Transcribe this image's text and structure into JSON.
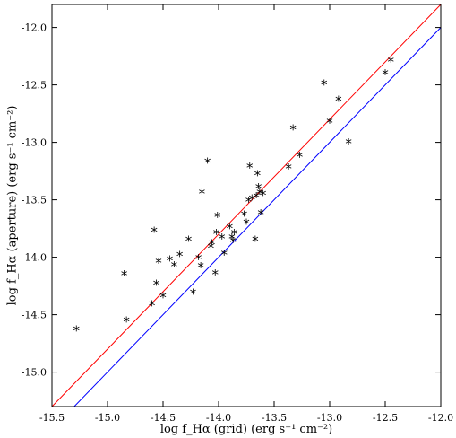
{
  "chart_data": {
    "type": "scatter",
    "xlabel": "log f_Hα (grid) (erg s⁻¹ cm⁻²)",
    "ylabel": "log f_Hα (aperture) (erg s⁻¹ cm⁻²)",
    "xlim": [
      -15.5,
      -12.0
    ],
    "ylim": [
      -15.3,
      -11.8
    ],
    "x_ticks": [
      -15.5,
      -15.0,
      -14.5,
      -14.0,
      -13.5,
      -13.0,
      -12.5,
      -12.0
    ],
    "x_tick_labels": [
      "-15.5",
      "-15.0",
      "-14.5",
      "-14.0",
      "-13.5",
      "-13.0",
      "-12.5",
      "-12.0"
    ],
    "y_ticks": [
      -15.0,
      -14.5,
      -14.0,
      -13.5,
      -13.0,
      -12.5,
      -12.0
    ],
    "y_tick_labels": [
      "-15.0",
      "-14.5",
      "-14.0",
      "-13.5",
      "-13.0",
      "-12.5",
      "-12.0"
    ],
    "grid": false,
    "marker": "*",
    "lines": [
      {
        "color": "#ff0000",
        "points": [
          [
            -15.5,
            -15.3
          ],
          [
            -12.0,
            -11.8
          ]
        ]
      },
      {
        "color": "#0000ff",
        "points": [
          [
            -15.3,
            -15.3
          ],
          [
            -12.0,
            -12.0
          ]
        ]
      }
    ],
    "points": [
      [
        -15.28,
        -14.64
      ],
      [
        -14.85,
        -14.16
      ],
      [
        -14.83,
        -14.56
      ],
      [
        -14.6,
        -14.42
      ],
      [
        -14.58,
        -13.78
      ],
      [
        -14.56,
        -14.24
      ],
      [
        -14.54,
        -14.05
      ],
      [
        -14.5,
        -14.35
      ],
      [
        -14.44,
        -14.03
      ],
      [
        -14.4,
        -14.08
      ],
      [
        -14.35,
        -13.99
      ],
      [
        -14.27,
        -13.86
      ],
      [
        -14.23,
        -14.32
      ],
      [
        -14.18,
        -14.02
      ],
      [
        -14.16,
        -14.09
      ],
      [
        -14.15,
        -13.45
      ],
      [
        -14.1,
        -13.18
      ],
      [
        -14.07,
        -13.92
      ],
      [
        -14.06,
        -13.89
      ],
      [
        -14.03,
        -14.15
      ],
      [
        -14.02,
        -13.8
      ],
      [
        -14.01,
        -13.65
      ],
      [
        -13.97,
        -13.84
      ],
      [
        -13.95,
        -13.98
      ],
      [
        -13.9,
        -13.75
      ],
      [
        -13.88,
        -13.84
      ],
      [
        -13.87,
        -13.87
      ],
      [
        -13.86,
        -13.8
      ],
      [
        -13.77,
        -13.64
      ],
      [
        -13.75,
        -13.71
      ],
      [
        -13.73,
        -13.52
      ],
      [
        -13.72,
        -13.22
      ],
      [
        -13.7,
        -13.5
      ],
      [
        -13.67,
        -13.86
      ],
      [
        -13.66,
        -13.48
      ],
      [
        -13.65,
        -13.29
      ],
      [
        -13.64,
        -13.4
      ],
      [
        -13.63,
        -13.45
      ],
      [
        -13.62,
        -13.63
      ],
      [
        -13.6,
        -13.46
      ],
      [
        -13.37,
        -13.23
      ],
      [
        -13.33,
        -12.89
      ],
      [
        -13.27,
        -13.13
      ],
      [
        -13.05,
        -12.5
      ],
      [
        -13.0,
        -12.83
      ],
      [
        -12.92,
        -12.64
      ],
      [
        -12.83,
        -13.01
      ],
      [
        -12.5,
        -12.41
      ],
      [
        -12.45,
        -12.3
      ]
    ]
  }
}
